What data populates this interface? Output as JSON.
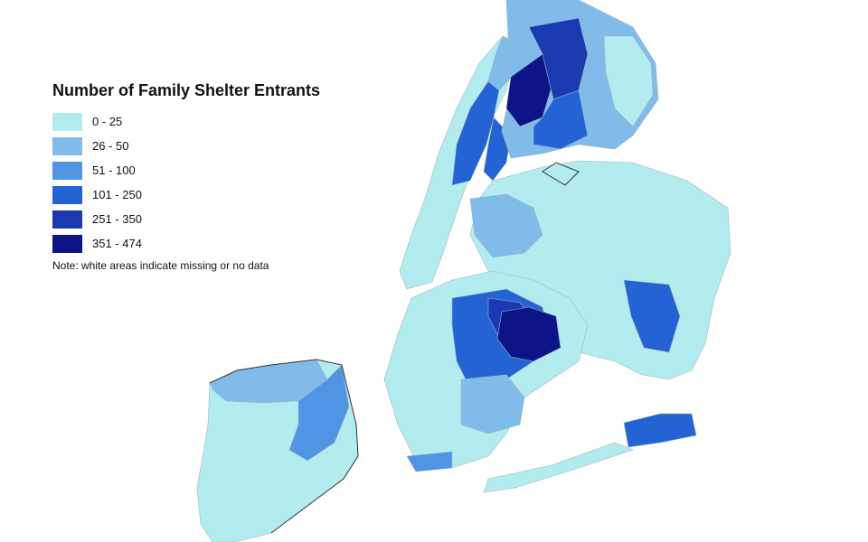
{
  "legend": {
    "title": "Number of Family Shelter Entrants",
    "bins": [
      {
        "label": "0 - 25",
        "color": "#b3ecef"
      },
      {
        "label": "26 - 50",
        "color": "#80bbea"
      },
      {
        "label": "51 - 100",
        "color": "#4f95e3"
      },
      {
        "label": "101 - 250",
        "color": "#2363d4"
      },
      {
        "label": "251 - 350",
        "color": "#1b3ab1"
      },
      {
        "label": "351 - 474",
        "color": "#0c1487"
      }
    ],
    "note": "Note: white areas indicate missing or no data"
  },
  "map": {
    "regions": [
      {
        "name": "staten-island",
        "bin": 0
      },
      {
        "name": "staten-island-north-shore",
        "bin": 1
      },
      {
        "name": "staten-island-stapleton",
        "bin": 2
      },
      {
        "name": "manhattan",
        "bin": 0
      },
      {
        "name": "harlem",
        "bin": 3
      },
      {
        "name": "east-harlem",
        "bin": 3
      },
      {
        "name": "washington-heights",
        "bin": 1
      },
      {
        "name": "bronx",
        "bin": 1
      },
      {
        "name": "bronx-central",
        "bin": 4
      },
      {
        "name": "bronx-west",
        "bin": 5
      },
      {
        "name": "bronx-south",
        "bin": 3
      },
      {
        "name": "bronx-east",
        "bin": 0
      },
      {
        "name": "queens",
        "bin": 0
      },
      {
        "name": "queens-west",
        "bin": 1
      },
      {
        "name": "queens-jamaica",
        "bin": 3
      },
      {
        "name": "brooklyn",
        "bin": 0
      },
      {
        "name": "brooklyn-central",
        "bin": 3
      },
      {
        "name": "brooklyn-bedstuy",
        "bin": 4
      },
      {
        "name": "brooklyn-brownsville",
        "bin": 5
      },
      {
        "name": "brooklyn-flatbush",
        "bin": 1
      },
      {
        "name": "brooklyn-coney-island",
        "bin": 2
      },
      {
        "name": "rockaway",
        "bin": 3
      },
      {
        "name": "rockaway-west",
        "bin": 0
      }
    ]
  }
}
